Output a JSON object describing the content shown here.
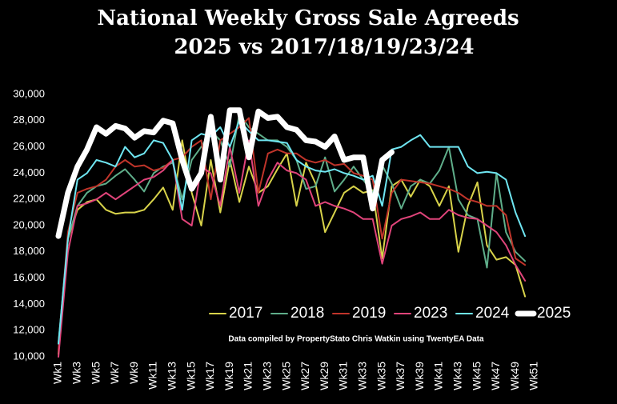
{
  "chart_data": {
    "type": "line",
    "title": "National Weekly Gross Sale Agreeds",
    "subtitle": "2025 vs 2017/18/19/23/24",
    "annotation": "Data compiled by PropertyStato Chris Watkin using TwentyEA Data",
    "categories": [
      "Wk1",
      null,
      "Wk3",
      null,
      "Wk5",
      null,
      "Wk7",
      null,
      "Wk9",
      null,
      "Wk11",
      null,
      "Wk13",
      null,
      "Wk15",
      null,
      "Wk17",
      null,
      "Wk19",
      null,
      "Wk21",
      null,
      "Wk23",
      null,
      "Wk25",
      null,
      "Wk27",
      null,
      "Wk29",
      null,
      "Wk31",
      null,
      "Wk33",
      null,
      "Wk35",
      null,
      "Wk37",
      null,
      "Wk39",
      null,
      "Wk41",
      null,
      "Wk43",
      null,
      "Wk45",
      null,
      "Wk47",
      null,
      "Wk49",
      null,
      "Wk51"
    ],
    "ylim": [
      10000,
      30000
    ],
    "yticks": [
      {
        "value": 10000,
        "label": "10,000"
      },
      {
        "value": 12000,
        "label": "12,000"
      },
      {
        "value": 14000,
        "label": "14,000"
      },
      {
        "value": 16000,
        "label": "16,000"
      },
      {
        "value": 18000,
        "label": "18,000"
      },
      {
        "value": 20000,
        "label": "20,000"
      },
      {
        "value": 22000,
        "label": "22,000"
      },
      {
        "value": 24000,
        "label": "24,000"
      },
      {
        "value": 26000,
        "label": "26,000"
      },
      {
        "value": 28000,
        "label": "28,000"
      },
      {
        "value": 30000,
        "label": "30,000"
      }
    ],
    "grid": false,
    "legend": "lower right",
    "series": [
      {
        "name": "2017",
        "color": "#d8d34a",
        "width": 2,
        "values": [
          10200,
          19000,
          21200,
          21800,
          22000,
          21200,
          20900,
          21000,
          21000,
          21200,
          22000,
          22900,
          21200,
          26500,
          22500,
          20000,
          25000,
          21000,
          25000,
          21800,
          24500,
          22500,
          23000,
          24300,
          25500,
          21500,
          24800,
          23200,
          19500,
          21000,
          22500,
          23000,
          22500,
          22700,
          17500,
          23000,
          23500,
          22200,
          23500,
          23000,
          21500,
          23000,
          18000,
          21500,
          23300,
          18500,
          17400,
          17600,
          17000,
          14600,
          null
        ]
      },
      {
        "name": "2018",
        "color": "#5fae8a",
        "width": 2,
        "values": [
          11000,
          19000,
          21500,
          22500,
          23000,
          23200,
          23800,
          24300,
          23500,
          22600,
          24000,
          24500,
          24800,
          22000,
          25000,
          26000,
          27200,
          26500,
          24500,
          28500,
          27500,
          27000,
          26500,
          26500,
          26000,
          25000,
          22800,
          23000,
          25200,
          22600,
          23500,
          24500,
          23500,
          22500,
          24600,
          23200,
          21300,
          23000,
          23500,
          23200,
          24200,
          26000,
          22000,
          20800,
          20500,
          16800,
          24000,
          19500,
          18000,
          17300,
          null
        ]
      },
      {
        "name": "2019",
        "color": "#c0342a",
        "width": 2,
        "values": [
          10500,
          19500,
          22500,
          22800,
          23000,
          23500,
          24500,
          25000,
          24500,
          24600,
          24200,
          24400,
          25000,
          25200,
          26000,
          26500,
          22000,
          26500,
          27000,
          27500,
          28200,
          22500,
          25500,
          25800,
          25500,
          25500,
          25000,
          24800,
          25000,
          24600,
          24700,
          24000,
          23800,
          23500,
          19000,
          22500,
          23500,
          23400,
          23300,
          23200,
          23000,
          22800,
          22500,
          22000,
          21800,
          21500,
          21500,
          20800,
          17500,
          17000,
          null
        ]
      },
      {
        "name": "2023",
        "color": "#e0447a",
        "width": 2,
        "values": [
          10000,
          18000,
          21500,
          21700,
          22000,
          22500,
          22000,
          22500,
          23000,
          23500,
          23700,
          24200,
          25000,
          20500,
          20000,
          24500,
          24000,
          21500,
          26000,
          22500,
          26500,
          21500,
          23500,
          24800,
          24200,
          24000,
          23500,
          21500,
          21800,
          21500,
          21300,
          21000,
          20500,
          20500,
          17100,
          20000,
          20500,
          20700,
          21000,
          20500,
          20500,
          21200,
          20800,
          20600,
          20500,
          20000,
          19500,
          18500,
          17000,
          15800,
          null
        ]
      },
      {
        "name": "2024",
        "color": "#6fe6f2",
        "width": 2,
        "values": [
          11000,
          19000,
          23500,
          24000,
          25000,
          24800,
          24500,
          26000,
          25200,
          25500,
          26500,
          26300,
          25000,
          21200,
          26500,
          27000,
          26800,
          27500,
          26000,
          28000,
          27200,
          26500,
          26500,
          26400,
          26300,
          25000,
          24500,
          24200,
          24100,
          24300,
          24000,
          23800,
          23500,
          23800,
          21500,
          25800,
          26000,
          26500,
          26900,
          26000,
          26000,
          26000,
          26000,
          24500,
          24000,
          24100,
          24000,
          23500,
          21000,
          19200,
          null
        ]
      },
      {
        "name": "2025",
        "color": "#ffffff",
        "width": 7,
        "values": [
          19200,
          22500,
          24500,
          25800,
          27500,
          27000,
          27600,
          27400,
          26700,
          27200,
          27100,
          28000,
          27800,
          25000,
          22800,
          24000,
          28300,
          23500,
          28800,
          28800,
          25200,
          28700,
          28200,
          28300,
          27500,
          27300,
          26500,
          26400,
          26000,
          26800,
          25000,
          25200,
          25200,
          21300,
          25000,
          25600,
          null,
          null,
          null,
          null,
          null,
          null,
          null,
          null,
          null,
          null,
          null,
          null,
          null,
          null,
          null
        ]
      }
    ]
  }
}
